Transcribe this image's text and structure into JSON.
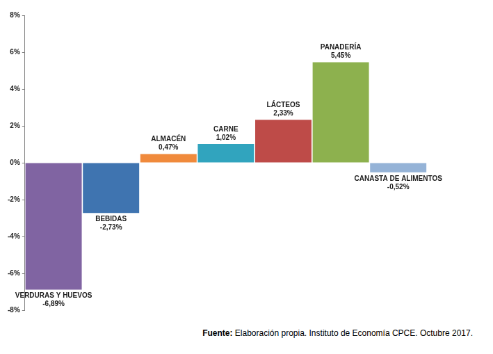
{
  "chart_data": {
    "type": "bar",
    "categories": [
      "VERDURAS Y HUEVOS",
      "BEBIDAS",
      "ALMACÉN",
      "CARNE",
      "LÁCTEOS",
      "PANADERÍA",
      "CANASTA DE ALIMENTOS"
    ],
    "values": [
      -6.89,
      -2.73,
      0.47,
      1.02,
      2.33,
      5.45,
      -0.52
    ],
    "value_labels": [
      "-6,89%",
      "-2,73%",
      "0,47%",
      "1,02%",
      "2,33%",
      "5,45%",
      "-0,52%"
    ],
    "colors": [
      "#8064a2",
      "#3f74b0",
      "#f08a3c",
      "#31a4be",
      "#be4b48",
      "#8db14e",
      "#95b3d7"
    ],
    "ylim": [
      -8,
      8
    ],
    "yticks": [
      {
        "value": -8,
        "label": "-8%"
      },
      {
        "value": -6,
        "label": "-6%"
      },
      {
        "value": -4,
        "label": "-4%"
      },
      {
        "value": -2,
        "label": "-2%"
      },
      {
        "value": 0,
        "label": "0%"
      },
      {
        "value": 2,
        "label": "2%"
      },
      {
        "value": 4,
        "label": "4%"
      },
      {
        "value": 6,
        "label": "6%"
      },
      {
        "value": 8,
        "label": "8%"
      }
    ],
    "grid": false,
    "data_labels": true,
    "tick_labels": "y",
    "source": "Fuente: Elaboración propia. Instituto de Economía CPCE. Octubre 2017."
  }
}
